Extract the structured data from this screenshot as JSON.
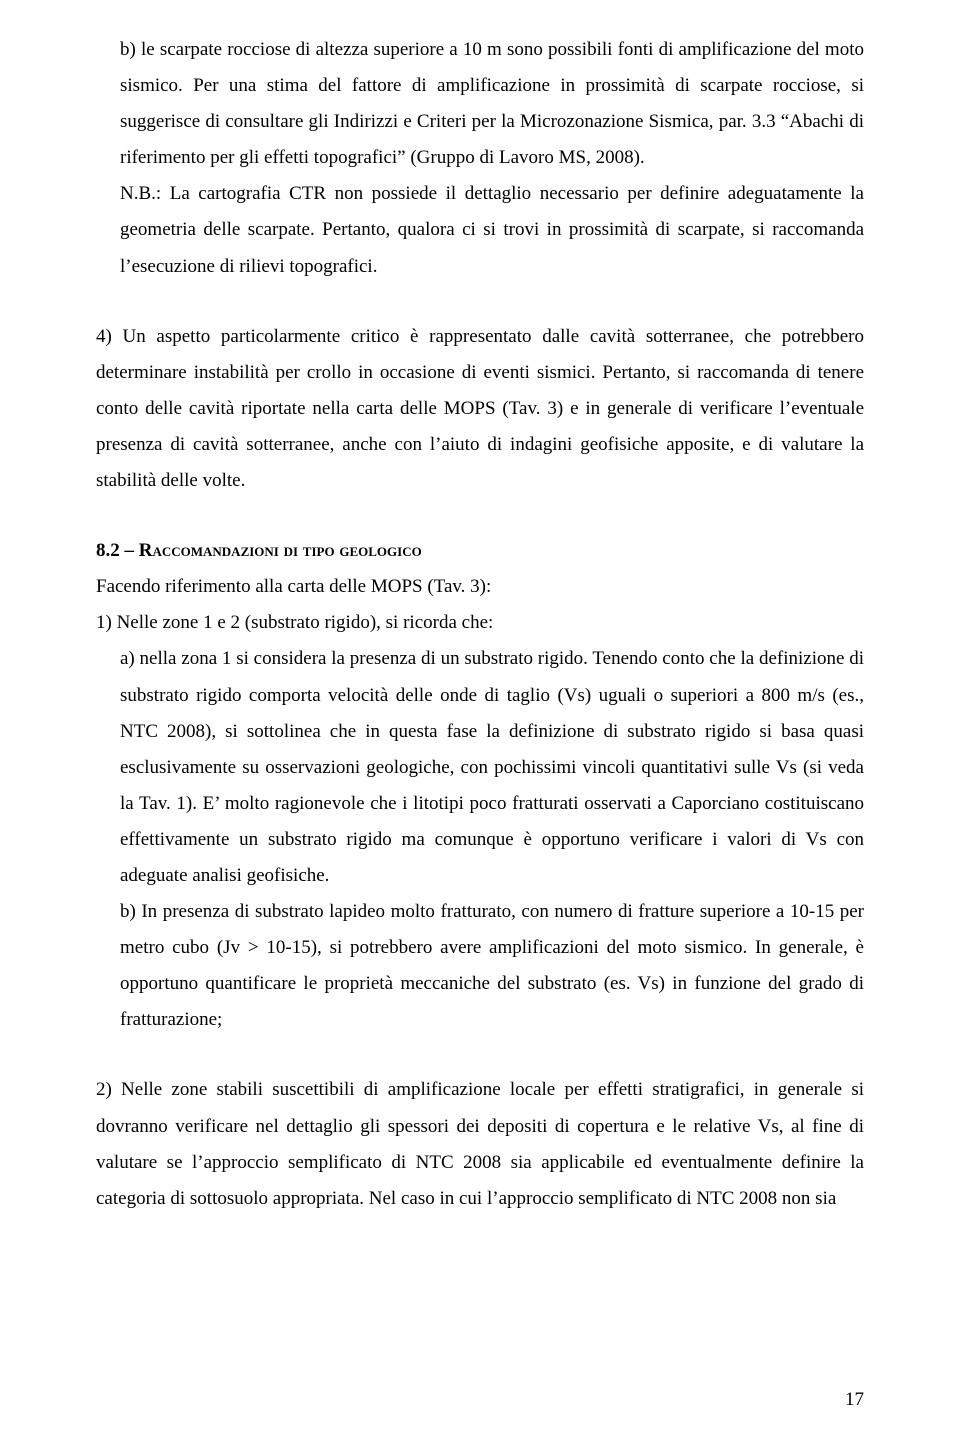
{
  "para_b": "b) le scarpate rocciose di altezza superiore a 10 m sono possibili fonti di amplificazione del moto sismico. Per una stima del fattore di amplificazione in prossimità di scarpate rocciose, si suggerisce di consultare gli Indirizzi e Criteri per la Microzonazione Sismica, par. 3.3 “Abachi di riferimento per gli effetti topografici” (Gruppo di Lavoro MS, 2008).",
  "para_nb": "N.B.: La cartografia CTR non possiede il dettaglio necessario per definire adeguatamente la geometria delle scarpate. Pertanto, qualora ci si trovi in prossimità di scarpate, si raccomanda l’esecuzione di rilievi topografici.",
  "para_4": "4) Un aspetto particolarmente critico è rappresentato dalle cavità sotterranee, che potrebbero determinare instabilità per crollo in occasione di eventi sismici. Pertanto, si raccomanda di tenere conto delle cavità riportate nella carta delle MOPS (Tav. 3) e in generale di verificare l’eventuale presenza di cavità sotterranee, anche con l’aiuto di indagini geofisiche apposite, e di valutare la stabilità delle volte.",
  "heading_num": "8.2 – ",
  "heading_rest": "Raccomandazioni di tipo geologico",
  "para_fac": "Facendo riferimento alla carta delle MOPS (Tav. 3):",
  "para_1": "1) Nelle zone 1 e 2 (substrato rigido), si ricorda che:",
  "para_1a": "a) nella zona 1 si considera la presenza di un substrato rigido. Tenendo conto che la definizione di substrato rigido comporta velocità delle onde di taglio (Vs) uguali o superiori a 800 m/s (es., NTC 2008), si sottolinea che in questa fase la definizione di substrato rigido si basa quasi esclusivamente su osservazioni geologiche, con pochissimi vincoli quantitativi sulle Vs (si veda la Tav. 1). E’ molto ragionevole che i litotipi poco fratturati osservati a Caporciano costituiscano effettivamente un substrato rigido ma comunque è opportuno verificare i valori di Vs con adeguate analisi geofisiche.",
  "para_1b": "b) In presenza di substrato lapideo molto fratturato, con numero di fratture superiore a 10-15 per metro cubo (Jv > 10-15), si potrebbero avere amplificazioni del moto sismico. In generale, è opportuno quantificare le proprietà meccaniche del substrato (es. Vs) in funzione del grado di fratturazione;",
  "para_2": "2) Nelle zone stabili suscettibili di amplificazione locale per effetti stratigrafici, in generale si dovranno verificare nel dettaglio gli spessori dei depositi di copertura e le relative Vs, al fine di valutare se l’approccio semplificato di NTC 2008 sia applicabile ed eventualmente definire la categoria di sottosuolo appropriata. Nel caso in cui l’approccio semplificato di NTC 2008 non sia",
  "page_number": "17"
}
